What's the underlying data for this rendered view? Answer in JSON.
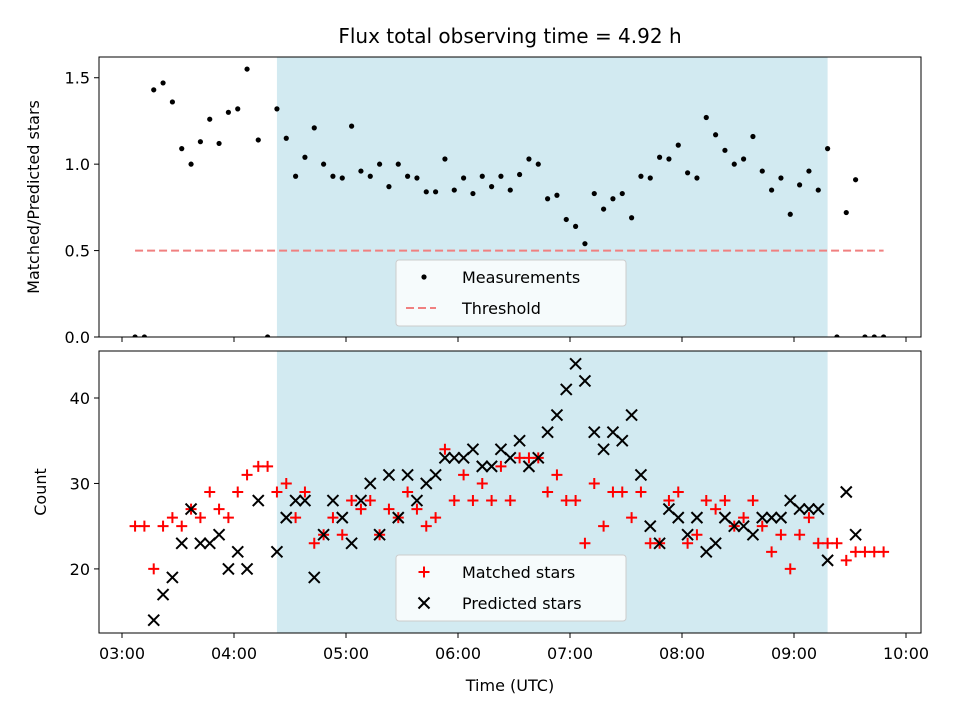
{
  "chart_data": [
    {
      "type": "scatter",
      "title": "Flux total observing time = 4.92 h",
      "ylabel": "Matched/Predicted stars",
      "xlim": [
        "03:00",
        "10:00"
      ],
      "ylim": [
        0,
        1.62
      ],
      "yticks": [
        "0.0",
        "0.5",
        "1.0",
        "1.5"
      ],
      "highlight_span": {
        "x": [
          "04:23",
          "09:18"
        ],
        "color": "#add8e6"
      },
      "legend": {
        "placement": "bottom-center",
        "entries": [
          "Measurements",
          "Threshold"
        ]
      },
      "series": [
        {
          "name": "Measurements",
          "marker": "dot",
          "color": "#000000",
          "points": [
            [
              "03:07",
              0
            ],
            [
              "03:12",
              0
            ],
            [
              "03:17",
              1.43
            ],
            [
              "03:22",
              1.47
            ],
            [
              "03:27",
              1.36
            ],
            [
              "03:32",
              1.09
            ],
            [
              "03:37",
              1.0
            ],
            [
              "03:42",
              1.13
            ],
            [
              "03:47",
              1.26
            ],
            [
              "03:52",
              1.12
            ],
            [
              "03:57",
              1.3
            ],
            [
              "04:02",
              1.32
            ],
            [
              "04:07",
              1.55
            ],
            [
              "04:13",
              1.14
            ],
            [
              "04:18",
              0
            ],
            [
              "04:23",
              1.32
            ],
            [
              "04:28",
              1.15
            ],
            [
              "04:33",
              0.93
            ],
            [
              "04:38",
              1.04
            ],
            [
              "04:43",
              1.21
            ],
            [
              "04:48",
              1.0
            ],
            [
              "04:53",
              0.93
            ],
            [
              "04:58",
              0.92
            ],
            [
              "05:03",
              1.22
            ],
            [
              "05:08",
              0.96
            ],
            [
              "05:13",
              0.93
            ],
            [
              "05:18",
              1.0
            ],
            [
              "05:23",
              0.87
            ],
            [
              "05:28",
              1.0
            ],
            [
              "05:33",
              0.93
            ],
            [
              "05:38",
              0.92
            ],
            [
              "05:43",
              0.84
            ],
            [
              "05:48",
              0.84
            ],
            [
              "05:53",
              1.03
            ],
            [
              "05:58",
              0.85
            ],
            [
              "06:03",
              0.92
            ],
            [
              "06:08",
              0.83
            ],
            [
              "06:13",
              0.93
            ],
            [
              "06:18",
              0.87
            ],
            [
              "06:23",
              0.93
            ],
            [
              "06:28",
              0.85
            ],
            [
              "06:33",
              0.94
            ],
            [
              "06:38",
              1.03
            ],
            [
              "06:43",
              1.0
            ],
            [
              "06:48",
              0.8
            ],
            [
              "06:53",
              0.82
            ],
            [
              "06:58",
              0.68
            ],
            [
              "07:03",
              0.64
            ],
            [
              "07:08",
              0.54
            ],
            [
              "07:13",
              0.83
            ],
            [
              "07:18",
              0.74
            ],
            [
              "07:23",
              0.8
            ],
            [
              "07:28",
              0.83
            ],
            [
              "07:33",
              0.69
            ],
            [
              "07:38",
              0.93
            ],
            [
              "07:43",
              0.92
            ],
            [
              "07:48",
              1.04
            ],
            [
              "07:53",
              1.03
            ],
            [
              "07:58",
              1.11
            ],
            [
              "08:03",
              0.95
            ],
            [
              "08:08",
              0.92
            ],
            [
              "08:13",
              1.27
            ],
            [
              "08:18",
              1.17
            ],
            [
              "08:23",
              1.08
            ],
            [
              "08:28",
              1.0
            ],
            [
              "08:33",
              1.03
            ],
            [
              "08:38",
              1.16
            ],
            [
              "08:43",
              0.96
            ],
            [
              "08:48",
              0.85
            ],
            [
              "08:53",
              0.92
            ],
            [
              "08:58",
              0.71
            ],
            [
              "09:03",
              0.88
            ],
            [
              "09:08",
              0.96
            ],
            [
              "09:13",
              0.85
            ],
            [
              "09:18",
              1.09
            ],
            [
              "09:23",
              0
            ],
            [
              "09:28",
              0.72
            ],
            [
              "09:33",
              0.91
            ],
            [
              "09:38",
              0
            ],
            [
              "09:43",
              0
            ],
            [
              "09:48",
              0
            ]
          ]
        },
        {
          "name": "Threshold",
          "marker": "dashed-line",
          "color": "#f08080",
          "points": [
            [
              "03:07",
              0.5
            ],
            [
              "09:48",
              0.5
            ]
          ]
        }
      ]
    },
    {
      "type": "scatter",
      "xlabel": "Time (UTC)",
      "ylabel": "Count",
      "xlim": [
        "03:00",
        "10:00"
      ],
      "ylim": [
        12.5,
        45.5
      ],
      "xticks": [
        "03:00",
        "04:00",
        "05:00",
        "06:00",
        "07:00",
        "08:00",
        "09:00",
        "10:00"
      ],
      "yticks": [
        "20",
        "30",
        "40"
      ],
      "highlight_span": {
        "x": [
          "04:23",
          "09:18"
        ],
        "color": "#add8e6"
      },
      "legend": {
        "placement": "bottom-center",
        "entries": [
          "Matched stars",
          "Predicted stars"
        ]
      },
      "series": [
        {
          "name": "Matched stars",
          "marker": "plus",
          "color": "#ff0000",
          "points": [
            [
              "03:07",
              25
            ],
            [
              "03:12",
              25
            ],
            [
              "03:17",
              20
            ],
            [
              "03:22",
              25
            ],
            [
              "03:27",
              26
            ],
            [
              "03:32",
              25
            ],
            [
              "03:37",
              27
            ],
            [
              "03:42",
              26
            ],
            [
              "03:47",
              29
            ],
            [
              "03:52",
              27
            ],
            [
              "03:57",
              26
            ],
            [
              "04:02",
              29
            ],
            [
              "04:07",
              31
            ],
            [
              "04:13",
              32
            ],
            [
              "04:18",
              32
            ],
            [
              "04:23",
              29
            ],
            [
              "04:28",
              30
            ],
            [
              "04:33",
              26
            ],
            [
              "04:38",
              29
            ],
            [
              "04:43",
              23
            ],
            [
              "04:48",
              24
            ],
            [
              "04:53",
              26
            ],
            [
              "04:58",
              24
            ],
            [
              "05:03",
              28
            ],
            [
              "05:08",
              27
            ],
            [
              "05:13",
              28
            ],
            [
              "05:18",
              24
            ],
            [
              "05:23",
              27
            ],
            [
              "05:28",
              26
            ],
            [
              "05:33",
              29
            ],
            [
              "05:38",
              27
            ],
            [
              "05:43",
              25
            ],
            [
              "05:48",
              26
            ],
            [
              "05:53",
              34
            ],
            [
              "05:58",
              28
            ],
            [
              "06:03",
              31
            ],
            [
              "06:08",
              28
            ],
            [
              "06:13",
              30
            ],
            [
              "06:18",
              28
            ],
            [
              "06:23",
              32
            ],
            [
              "06:28",
              28
            ],
            [
              "06:33",
              33
            ],
            [
              "06:38",
              33
            ],
            [
              "06:43",
              33
            ],
            [
              "06:48",
              29
            ],
            [
              "06:53",
              31
            ],
            [
              "06:58",
              28
            ],
            [
              "07:03",
              28
            ],
            [
              "07:08",
              23
            ],
            [
              "07:13",
              30
            ],
            [
              "07:18",
              25
            ],
            [
              "07:23",
              29
            ],
            [
              "07:28",
              29
            ],
            [
              "07:33",
              26
            ],
            [
              "07:38",
              29
            ],
            [
              "07:43",
              23
            ],
            [
              "07:48",
              23
            ],
            [
              "07:53",
              28
            ],
            [
              "07:58",
              29
            ],
            [
              "08:03",
              23
            ],
            [
              "08:08",
              24
            ],
            [
              "08:13",
              28
            ],
            [
              "08:18",
              27
            ],
            [
              "08:23",
              28
            ],
            [
              "08:28",
              25
            ],
            [
              "08:33",
              26
            ],
            [
              "08:38",
              28
            ],
            [
              "08:43",
              25
            ],
            [
              "08:48",
              22
            ],
            [
              "08:53",
              24
            ],
            [
              "08:58",
              20
            ],
            [
              "09:03",
              24
            ],
            [
              "09:08",
              26
            ],
            [
              "09:13",
              23
            ],
            [
              "09:18",
              23
            ],
            [
              "09:23",
              23
            ],
            [
              "09:28",
              21
            ],
            [
              "09:33",
              22
            ],
            [
              "09:38",
              22
            ],
            [
              "09:43",
              22
            ],
            [
              "09:48",
              22
            ]
          ]
        },
        {
          "name": "Predicted stars",
          "marker": "x",
          "color": "#000000",
          "points": [
            [
              "03:17",
              14
            ],
            [
              "03:22",
              17
            ],
            [
              "03:27",
              19
            ],
            [
              "03:32",
              23
            ],
            [
              "03:37",
              27
            ],
            [
              "03:42",
              23
            ],
            [
              "03:47",
              23
            ],
            [
              "03:52",
              24
            ],
            [
              "03:57",
              20
            ],
            [
              "04:02",
              22
            ],
            [
              "04:07",
              20
            ],
            [
              "04:13",
              28
            ],
            [
              "04:23",
              22
            ],
            [
              "04:28",
              26
            ],
            [
              "04:33",
              28
            ],
            [
              "04:38",
              28
            ],
            [
              "04:43",
              19
            ],
            [
              "04:48",
              24
            ],
            [
              "04:53",
              28
            ],
            [
              "04:58",
              26
            ],
            [
              "05:03",
              23
            ],
            [
              "05:08",
              28
            ],
            [
              "05:13",
              30
            ],
            [
              "05:18",
              24
            ],
            [
              "05:23",
              31
            ],
            [
              "05:28",
              26
            ],
            [
              "05:33",
              31
            ],
            [
              "05:38",
              28
            ],
            [
              "05:43",
              30
            ],
            [
              "05:48",
              31
            ],
            [
              "05:53",
              33
            ],
            [
              "05:58",
              33
            ],
            [
              "06:03",
              33
            ],
            [
              "06:08",
              34
            ],
            [
              "06:13",
              32
            ],
            [
              "06:18",
              32
            ],
            [
              "06:23",
              34
            ],
            [
              "06:28",
              33
            ],
            [
              "06:33",
              35
            ],
            [
              "06:38",
              32
            ],
            [
              "06:43",
              33
            ],
            [
              "06:48",
              36
            ],
            [
              "06:53",
              38
            ],
            [
              "06:58",
              41
            ],
            [
              "07:03",
              44
            ],
            [
              "07:08",
              42
            ],
            [
              "07:13",
              36
            ],
            [
              "07:18",
              34
            ],
            [
              "07:23",
              36
            ],
            [
              "07:28",
              35
            ],
            [
              "07:33",
              38
            ],
            [
              "07:38",
              31
            ],
            [
              "07:43",
              25
            ],
            [
              "07:48",
              23
            ],
            [
              "07:53",
              27
            ],
            [
              "07:58",
              26
            ],
            [
              "08:03",
              24
            ],
            [
              "08:08",
              26
            ],
            [
              "08:13",
              22
            ],
            [
              "08:18",
              23
            ],
            [
              "08:23",
              26
            ],
            [
              "08:28",
              25
            ],
            [
              "08:33",
              25
            ],
            [
              "08:38",
              24
            ],
            [
              "08:43",
              26
            ],
            [
              "08:48",
              26
            ],
            [
              "08:53",
              26
            ],
            [
              "08:58",
              28
            ],
            [
              "09:03",
              27
            ],
            [
              "09:08",
              27
            ],
            [
              "09:13",
              27
            ],
            [
              "09:18",
              21
            ],
            [
              "09:28",
              29
            ],
            [
              "09:33",
              24
            ]
          ]
        }
      ]
    }
  ]
}
